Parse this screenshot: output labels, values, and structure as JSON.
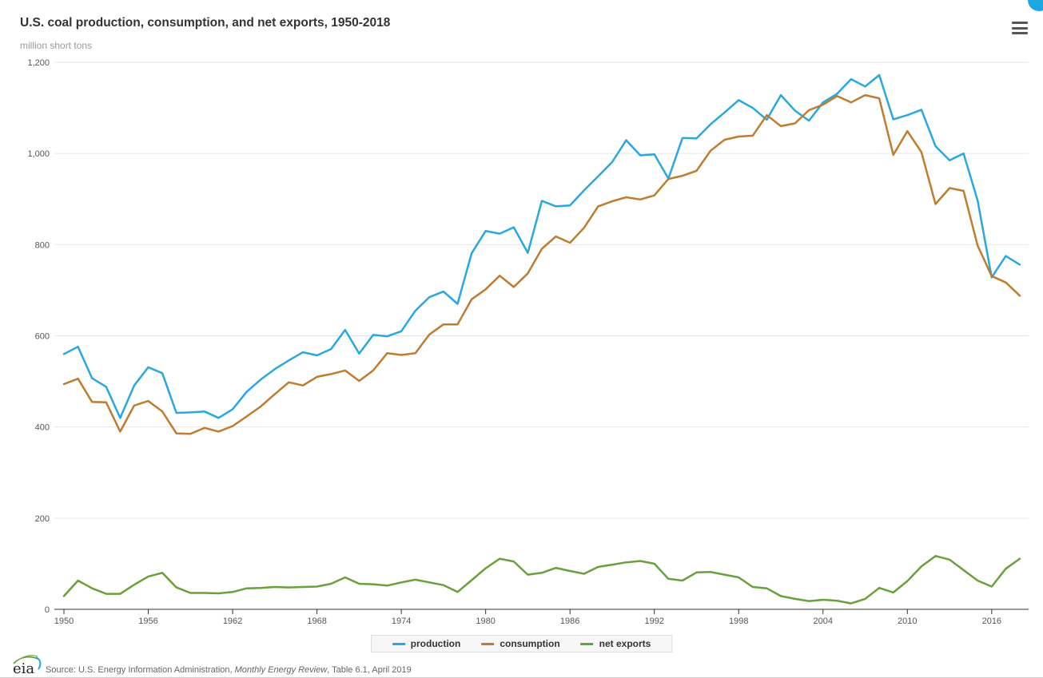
{
  "header": {
    "title": "U.S. coal production, consumption, and net exports, 1950-2018",
    "subtitle": "million short tons"
  },
  "menu": {
    "icon": "hamburger-icon"
  },
  "colors": {
    "production": "#29a7e0",
    "consumption": "#be7c31",
    "net_exports": "#68a03c",
    "grid": "#e6e6e6",
    "axis": "#333333",
    "tick_label": "#555555",
    "corner_accent": "#1da7e0"
  },
  "chart_data": {
    "type": "line",
    "title": "U.S. coal production, consumption, and net exports, 1950-2018",
    "ylabel": "million short tons",
    "xlabel": "",
    "ylim": [
      0,
      1200
    ],
    "grid": true,
    "legend_position": "bottom",
    "x": [
      1950,
      1951,
      1952,
      1953,
      1954,
      1955,
      1956,
      1957,
      1958,
      1959,
      1960,
      1961,
      1962,
      1963,
      1964,
      1965,
      1966,
      1967,
      1968,
      1969,
      1970,
      1971,
      1972,
      1973,
      1974,
      1975,
      1976,
      1977,
      1978,
      1979,
      1980,
      1981,
      1982,
      1983,
      1984,
      1985,
      1986,
      1987,
      1988,
      1989,
      1990,
      1991,
      1992,
      1993,
      1994,
      1995,
      1996,
      1997,
      1998,
      1999,
      2000,
      2001,
      2002,
      2003,
      2004,
      2005,
      2006,
      2007,
      2008,
      2009,
      2010,
      2011,
      2012,
      2013,
      2014,
      2015,
      2016,
      2017,
      2018
    ],
    "series": [
      {
        "name": "production",
        "color": "#29a7e0",
        "values": [
          560,
          576,
          507,
          488,
          420,
          491,
          531,
          518,
          431,
          432,
          434,
          420,
          439,
          477,
          504,
          527,
          546,
          564,
          557,
          571,
          613,
          561,
          602,
          599,
          610,
          655,
          685,
          697,
          670,
          781,
          830,
          824,
          838,
          782,
          896,
          884,
          886,
          919,
          950,
          981,
          1029,
          996,
          998,
          945,
          1034,
          1033,
          1064,
          1090,
          1117,
          1100,
          1074,
          1128,
          1094,
          1072,
          1112,
          1131,
          1163,
          1147,
          1172,
          1075,
          1084,
          1096,
          1016,
          985,
          1000,
          897,
          728,
          775,
          756
        ]
      },
      {
        "name": "consumption",
        "color": "#be7c31",
        "values": [
          494,
          506,
          455,
          454,
          390,
          447,
          457,
          434,
          386,
          385,
          398,
          390,
          402,
          423,
          445,
          472,
          498,
          491,
          510,
          516,
          524,
          501,
          524,
          562,
          558,
          562,
          603,
          625,
          625,
          680,
          702,
          732,
          707,
          737,
          791,
          818,
          804,
          837,
          884,
          895,
          904,
          899,
          908,
          944,
          951,
          962,
          1006,
          1030,
          1037,
          1039,
          1084,
          1060,
          1066,
          1095,
          1107,
          1126,
          1112,
          1128,
          1121,
          997,
          1049,
          1003,
          889,
          924,
          918,
          798,
          731,
          717,
          688
        ]
      },
      {
        "name": "net exports",
        "color": "#68a03c",
        "values": [
          29,
          63,
          46,
          34,
          34,
          54,
          72,
          80,
          48,
          36,
          36,
          35,
          38,
          46,
          47,
          49,
          48,
          49,
          50,
          56,
          70,
          56,
          55,
          52,
          59,
          65,
          59,
          53,
          38,
          64,
          90,
          111,
          105,
          76,
          80,
          91,
          84,
          78,
          93,
          98,
          103,
          106,
          100,
          67,
          63,
          81,
          82,
          76,
          70,
          49,
          46,
          29,
          23,
          18,
          21,
          19,
          13,
          23,
          47,
          37,
          62,
          94,
          117,
          109,
          86,
          63,
          50,
          89,
          111
        ]
      }
    ],
    "y_ticks": [
      {
        "value": 0,
        "label": "0"
      },
      {
        "value": 200,
        "label": "200"
      },
      {
        "value": 400,
        "label": "400"
      },
      {
        "value": 600,
        "label": "600"
      },
      {
        "value": 800,
        "label": "800"
      },
      {
        "value": 1000,
        "label": "1,000"
      },
      {
        "value": 1200,
        "label": "1,200"
      }
    ],
    "x_ticks": [
      {
        "value": 1950,
        "label": "1950"
      },
      {
        "value": 1956,
        "label": "1956"
      },
      {
        "value": 1962,
        "label": "1962"
      },
      {
        "value": 1968,
        "label": "1968"
      },
      {
        "value": 1974,
        "label": "1974"
      },
      {
        "value": 1980,
        "label": "1980"
      },
      {
        "value": 1986,
        "label": "1986"
      },
      {
        "value": 1992,
        "label": "1992"
      },
      {
        "value": 1998,
        "label": "1998"
      },
      {
        "value": 2004,
        "label": "2004"
      },
      {
        "value": 2010,
        "label": "2010"
      },
      {
        "value": 2016,
        "label": "2016"
      }
    ]
  },
  "legend": {
    "items": [
      {
        "label": "production",
        "color": "#29a7e0"
      },
      {
        "label": "consumption",
        "color": "#be7c31"
      },
      {
        "label": "net exports",
        "color": "#68a03c"
      }
    ]
  },
  "footer": {
    "logo_text": "eia",
    "source_prefix": "Source: U.S. Energy Information Administration, ",
    "source_italic": "Monthly Energy Review",
    "source_suffix": ", Table 6.1, April 2019"
  }
}
